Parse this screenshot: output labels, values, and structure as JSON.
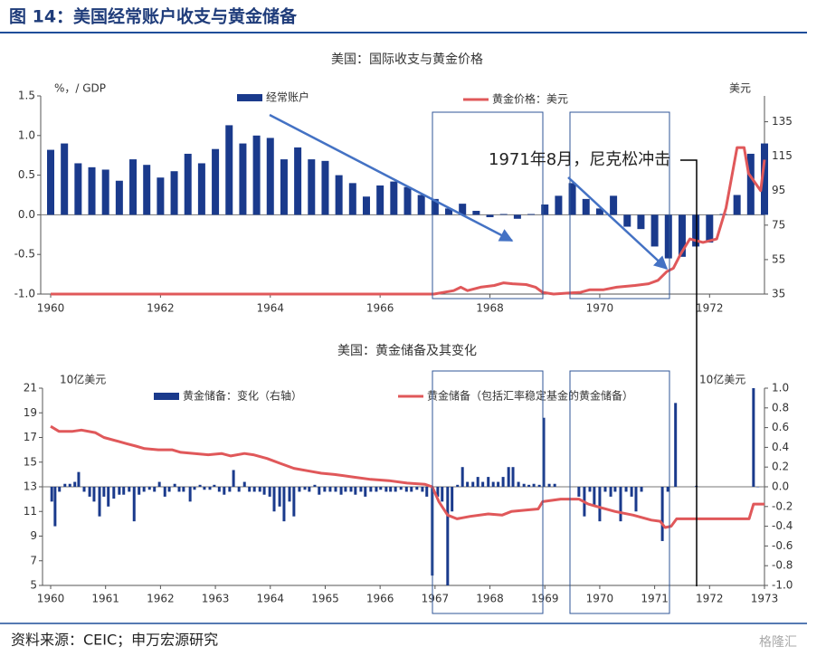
{
  "header": {
    "title": "图 14：美国经常账户收支与黄金储备"
  },
  "source": "资料来源：CEIC；申万宏源研究",
  "watermark": "格隆汇",
  "chart_data": [
    {
      "type": "bar-line",
      "title": "美国：国际收支与黄金价格",
      "ylabel": "%，/ GDP",
      "y2label": "美元",
      "annotation": "1971年8月，尼克松冲击",
      "xlim": [
        1960,
        1973
      ],
      "xticks": [
        1960,
        1962,
        1964,
        1966,
        1968,
        1970,
        1972
      ],
      "ylim": [
        -1,
        1.5
      ],
      "yticks": [
        {
          "value": -1,
          "label": "-1.0"
        },
        {
          "value": -0.5,
          "label": "-0.5"
        },
        {
          "value": 0,
          "label": "0.0"
        },
        {
          "value": 0.5,
          "label": "0.5"
        },
        {
          "value": 1,
          "label": "1.0"
        },
        {
          "value": 1.5,
          "label": "1.5"
        }
      ],
      "y2lim": [
        35,
        150
      ],
      "y2ticks": [
        35,
        55,
        75,
        95,
        115,
        135
      ],
      "series": [
        {
          "name": "经常账户",
          "type": "bar",
          "axis": "y",
          "color": "#1a3a8c",
          "x": [
            1960,
            1960.25,
            1960.5,
            1960.75,
            1961,
            1961.25,
            1961.5,
            1961.75,
            1962,
            1962.25,
            1962.5,
            1962.75,
            1963,
            1963.25,
            1963.5,
            1963.75,
            1964,
            1964.25,
            1964.5,
            1964.75,
            1965,
            1965.25,
            1965.5,
            1965.75,
            1966,
            1966.25,
            1966.5,
            1966.75,
            1967,
            1967.25,
            1967.5,
            1967.75,
            1968,
            1968.25,
            1968.5,
            1968.75,
            1969,
            1969.25,
            1969.5,
            1969.75,
            1970,
            1970.25,
            1970.5,
            1970.75,
            1971,
            1971.25,
            1971.5,
            1971.75,
            1972,
            1972.25,
            1972.5,
            1972.75,
            1973
          ],
          "values": [
            0.82,
            0.9,
            0.65,
            0.6,
            0.57,
            0.43,
            0.7,
            0.63,
            0.47,
            0.55,
            0.77,
            0.65,
            0.83,
            1.13,
            0.9,
            1.0,
            0.97,
            0.7,
            0.85,
            0.7,
            0.68,
            0.5,
            0.4,
            0.23,
            0.37,
            0.42,
            0.35,
            0.25,
            0.2,
            0.08,
            0.14,
            0.05,
            -0.03,
            0.01,
            -0.05,
            0.01,
            0.13,
            0.24,
            0.4,
            0.2,
            0.08,
            0.24,
            -0.15,
            -0.18,
            -0.4,
            -0.55,
            -0.53,
            -0.4,
            -0.35,
            0.01,
            0.25,
            0.77,
            0.9
          ]
        },
        {
          "name": "黄金价格：美元",
          "type": "line",
          "axis": "y2",
          "color": "#e0585a",
          "x": [
            1960,
            1966.98,
            1967.34,
            1967.47,
            1967.59,
            1967.83,
            1968.08,
            1968.25,
            1968.41,
            1968.66,
            1968.83,
            1968.96,
            1969.16,
            1969.4,
            1969.65,
            1969.82,
            1970.07,
            1970.31,
            1970.64,
            1970.89,
            1971.06,
            1971.22,
            1971.34,
            1971.47,
            1971.64,
            1971.88,
            1972.13,
            1972.3,
            1972.5,
            1972.63,
            1972.71,
            1972.93,
            1973
          ],
          "values": [
            35,
            35,
            37,
            39,
            37,
            39,
            40,
            41.5,
            41,
            40.5,
            39,
            36,
            35,
            35.5,
            36,
            37.5,
            37.5,
            39,
            40,
            41,
            43,
            48,
            50,
            58,
            67,
            65,
            67,
            85,
            120,
            120,
            105,
            95,
            113
          ]
        }
      ]
    },
    {
      "type": "bar-line",
      "title": "美国：黄金储备及其变化",
      "ylabel": "10亿美元",
      "y2label": "10亿美元",
      "xlim": [
        1960,
        1973
      ],
      "xticks": [
        1960,
        1961,
        1962,
        1963,
        1964,
        1965,
        1966,
        1967,
        1968,
        1969,
        1970,
        1971,
        1972,
        1973
      ],
      "ylim": [
        5,
        21
      ],
      "yticks": [
        5,
        7,
        9,
        11,
        13,
        15,
        17,
        19,
        21
      ],
      "y2lim": [
        -1,
        1
      ],
      "y2ticks": [
        {
          "value": -1,
          "label": "-1.0"
        },
        {
          "value": -0.8,
          "label": "-0.8"
        },
        {
          "value": -0.6,
          "label": "-0.6"
        },
        {
          "value": -0.4,
          "label": "-0.4"
        },
        {
          "value": -0.2,
          "label": "-0.2"
        },
        {
          "value": 0,
          "label": "0.0"
        },
        {
          "value": 0.2,
          "label": "0.2"
        },
        {
          "value": 0.4,
          "label": "0.4"
        },
        {
          "value": 0.6,
          "label": "0.6"
        },
        {
          "value": 0.8,
          "label": "0.8"
        },
        {
          "value": 1,
          "label": "1.0"
        }
      ],
      "series": [
        {
          "name": "黄金储备：变化（右轴）",
          "type": "bar",
          "axis": "y2",
          "color": "#1a3a8c",
          "x": [
            1960.02,
            1960.08,
            1960.16,
            1960.26,
            1960.35,
            1960.44,
            1960.51,
            1960.61,
            1960.71,
            1960.79,
            1960.89,
            1960.97,
            1961.05,
            1961.15,
            1961.25,
            1961.33,
            1961.43,
            1961.52,
            1961.61,
            1961.7,
            1961.8,
            1961.89,
            1961.98,
            1962.08,
            1962.16,
            1962.26,
            1962.34,
            1962.42,
            1962.54,
            1962.62,
            1962.72,
            1962.8,
            1962.9,
            1962.98,
            1963.07,
            1963.16,
            1963.26,
            1963.33,
            1963.43,
            1963.53,
            1963.62,
            1963.71,
            1963.81,
            1963.89,
            1963.99,
            1964.07,
            1964.17,
            1964.25,
            1964.35,
            1964.43,
            1964.53,
            1964.63,
            1964.71,
            1964.81,
            1964.89,
            1964.99,
            1965.09,
            1965.19,
            1965.29,
            1965.37,
            1965.47,
            1965.55,
            1965.65,
            1965.73,
            1965.83,
            1965.93,
            1966.01,
            1966.11,
            1966.19,
            1966.28,
            1966.38,
            1966.48,
            1966.57,
            1966.67,
            1966.77,
            1966.85,
            1966.95,
            1967.05,
            1967.13,
            1967.23,
            1967.31,
            1967.41,
            1967.5,
            1967.59,
            1967.69,
            1967.78,
            1967.87,
            1967.97,
            1968.06,
            1968.15,
            1968.24,
            1968.34,
            1968.42,
            1968.52,
            1968.62,
            1968.71,
            1968.8,
            1968.9,
            1968.98,
            1969.08,
            1969.18,
            1969.62,
            1969.72,
            1969.82,
            1969.9,
            1970,
            1970.1,
            1970.2,
            1970.28,
            1970.38,
            1970.48,
            1970.58,
            1970.66,
            1970.76,
            1971.14,
            1971.24,
            1971.38,
            1971.76,
            1972.8,
            1972.88
          ],
          "values": [
            -0.15,
            -0.4,
            -0.05,
            0.03,
            0.03,
            0.05,
            0.15,
            -0.05,
            -0.1,
            -0.15,
            -0.3,
            -0.1,
            -0.2,
            -0.12,
            -0.08,
            -0.08,
            -0.05,
            -0.35,
            -0.08,
            -0.05,
            -0.03,
            -0.05,
            0.05,
            -0.1,
            -0.05,
            0.03,
            -0.05,
            -0.05,
            -0.15,
            -0.03,
            0.02,
            -0.03,
            -0.03,
            0.02,
            -0.05,
            -0.08,
            -0.05,
            0.17,
            -0.05,
            0.05,
            -0.05,
            -0.05,
            -0.05,
            -0.08,
            -0.1,
            -0.25,
            -0.2,
            -0.35,
            -0.15,
            -0.3,
            -0.05,
            -0.03,
            -0.05,
            0.02,
            -0.08,
            -0.05,
            -0.05,
            -0.05,
            -0.08,
            -0.05,
            -0.05,
            -0.08,
            -0.05,
            -0.1,
            -0.05,
            -0.05,
            -0.03,
            -0.05,
            -0.05,
            -0.05,
            -0.03,
            -0.05,
            -0.05,
            -0.03,
            -0.05,
            -0.1,
            -0.9,
            -0.1,
            -0.15,
            -1.0,
            -0.25,
            0.02,
            0.2,
            0.05,
            0.05,
            0.1,
            0.05,
            0.1,
            0.05,
            0.05,
            0.1,
            0.2,
            0.2,
            0.05,
            0.03,
            0.02,
            0.03,
            0.02,
            0.7,
            0.03,
            0.03,
            -0.1,
            -0.3,
            -0.05,
            -0.2,
            -0.35,
            -0.05,
            -0.1,
            -0.05,
            -0.35,
            -0.05,
            -0.1,
            -0.25,
            -0.05,
            -0.55,
            -0.05,
            0.85,
            0.01,
            1.0,
            0
          ]
        },
        {
          "name": "黄金储备（包括汇率稳定基金的黄金储备）",
          "type": "line",
          "axis": "y",
          "color": "#e0585a",
          "x": [
            1960,
            1960.15,
            1960.4,
            1960.56,
            1960.81,
            1960.97,
            1961.22,
            1961.38,
            1961.55,
            1961.71,
            1961.96,
            1962.21,
            1962.37,
            1962.62,
            1962.87,
            1963.11,
            1963.28,
            1963.53,
            1963.69,
            1963.94,
            1964.18,
            1964.43,
            1964.68,
            1964.93,
            1965.17,
            1965.5,
            1965.83,
            1966.16,
            1966.49,
            1966.82,
            1966.95,
            1967.07,
            1967.23,
            1967.4,
            1967.64,
            1967.97,
            1968.22,
            1968.39,
            1968.63,
            1968.88,
            1968.96,
            1969.29,
            1969.62,
            1969.79,
            1970.03,
            1970.28,
            1970.61,
            1970.94,
            1971.1,
            1971.19,
            1971.3,
            1971.4,
            1971.76,
            1972.26,
            1972.72,
            1972.8,
            1973
          ],
          "values": [
            17.9,
            17.5,
            17.5,
            17.6,
            17.4,
            17.0,
            16.7,
            16.5,
            16.3,
            16.1,
            16.0,
            16.0,
            15.8,
            15.7,
            15.6,
            15.7,
            15.5,
            15.7,
            15.6,
            15.3,
            14.9,
            14.5,
            14.3,
            14.1,
            14.0,
            13.8,
            13.6,
            13.5,
            13.3,
            13.2,
            13.0,
            11.8,
            10.7,
            10.4,
            10.6,
            10.8,
            10.7,
            11.0,
            11.1,
            11.2,
            11.8,
            12.0,
            12.0,
            11.6,
            11.3,
            11.0,
            10.7,
            10.3,
            10.2,
            9.7,
            9.8,
            10.4,
            10.4,
            10.4,
            10.4,
            11.6,
            11.6
          ]
        }
      ]
    }
  ]
}
